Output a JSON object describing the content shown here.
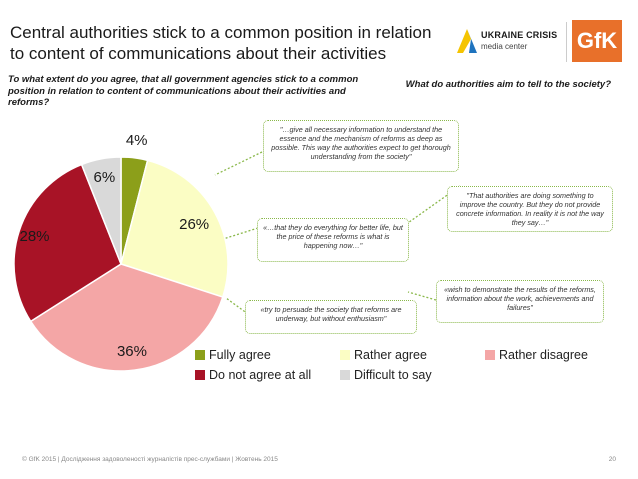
{
  "title": {
    "line1": "Central authorities stick to a common position in relation",
    "line2": "to content of communications about their activities"
  },
  "logos": {
    "ucmc_line1": "UKRAINE CRISIS",
    "ucmc_line2": "media center",
    "gfk": "GfK"
  },
  "question_left": "To what extent do you agree, that all government agencies stick to a common position in relation to content of communications about their activities and reforms?",
  "question_right": "What do authorities aim to tell to the society?",
  "quotes": [
    "\"…give all necessary information to understand the essence and the mechanism of reforms as deep as possible. This way the authorities expect to get thorough understanding from the society\"",
    "\"That authorities are doing something to improve the country. But they do not provide concrete information. In reality it is not the way they say…\"",
    "«…that they do everything for better life, but the price of these reforms is what is happening now…\"",
    "«wish to demonstrate the results of the reforms, information about the work, achievements and failures\"",
    "«try to persuade the society that reforms are underway, but without enthusiasm\""
  ],
  "colors": {
    "fully_agree": "#8c9f1a",
    "rather_agree": "#fbfdc4",
    "rather_disagree": "#f4a6a6",
    "do_not_agree": "#a81326",
    "difficult": "#d9d9d9",
    "bubble_border": "#8ab84a"
  },
  "chart_data": {
    "type": "pie",
    "categories": [
      "Fully agree",
      "Rather agree",
      "Rather disagree",
      "Do not agree at all",
      "Difficult to say"
    ],
    "values": [
      4,
      26,
      36,
      28,
      6
    ],
    "labels": [
      "4%",
      "26%",
      "36%",
      "28%",
      "6%"
    ]
  },
  "footer": "© GfK 2015 | Дослідження задоволеності журналістів прес-службами | Жовтень 2015",
  "page_number": "20"
}
